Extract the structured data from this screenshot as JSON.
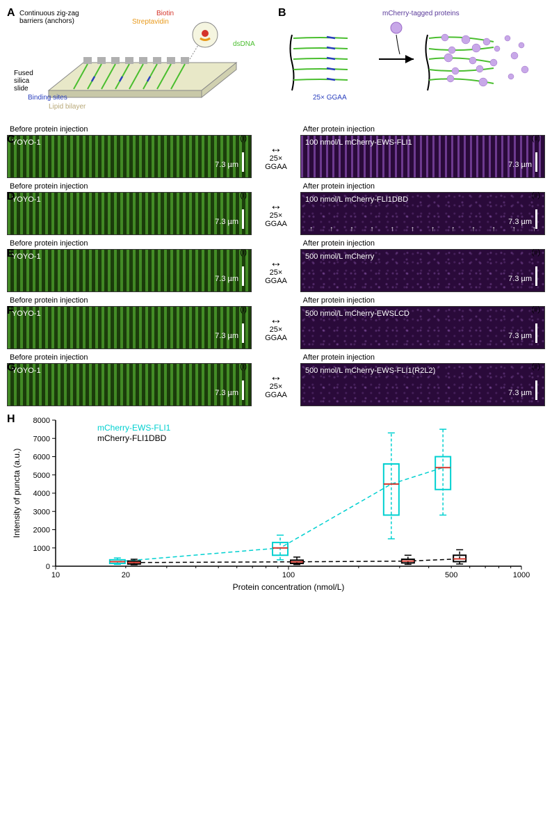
{
  "panelA": {
    "label": "A",
    "labels": {
      "zigzag": "Continuous zig-zag barriers (anchors)",
      "biotin": "Biotin",
      "streptavidin": "Streptavidin",
      "dsDNA": "dsDNA",
      "fused": "Fused silica slide",
      "binding": "Binding sites",
      "lipid": "Lipid bilayer"
    },
    "colors": {
      "biotin": "#d4342a",
      "streptavidin": "#e8991a",
      "dsDNA": "#4abe2f",
      "binding": "#2a3fbe",
      "lipid": "#b8a878",
      "slide": "#e8e8c8",
      "anchor": "#b0b0b0"
    }
  },
  "panelB": {
    "label": "B",
    "mcherry_label": "mCherry-tagged proteins",
    "ggaa_label": "25× GGAA",
    "colors": {
      "mcherry_text": "#5a3a9a",
      "dna": "#4abe2f",
      "binding": "#2a3fbe",
      "protein": "#c8a8e8"
    }
  },
  "rows": [
    {
      "label": "C",
      "before": "Before protein injection",
      "after": "After protein injection",
      "yoyo": "YOYO-1",
      "protein": "100 nmol/L mCherry-EWS-FLI1",
      "ggaa": "25× GGAA",
      "scale": "7.3 µm",
      "showStripesRight": true,
      "showArrows": false
    },
    {
      "label": "D",
      "before": "Before protein injection",
      "after": "After protein injection",
      "yoyo": "YOYO-1",
      "protein": "100 nmol/L mCherry-FLI1DBD",
      "ggaa": "25× GGAA",
      "scale": "7.3 µm",
      "showStripesRight": false,
      "showArrows": true
    },
    {
      "label": "E",
      "before": "Before protein injection",
      "after": "After protein injection",
      "yoyo": "YOYO-1",
      "protein": "500 nmol/L mCherry",
      "ggaa": "25× GGAA",
      "scale": "7.3 µm",
      "showStripesRight": false,
      "showArrows": false
    },
    {
      "label": "F",
      "before": "Before protein injection",
      "after": "After protein injection",
      "yoyo": "YOYO-1",
      "protein": "500 nmol/L mCherry-EWSLCD",
      "ggaa": "25× GGAA",
      "scale": "7.3 µm",
      "showStripesRight": false,
      "showArrows": false
    },
    {
      "label": "G",
      "before": "Before protein injection",
      "after": "After protein injection",
      "yoyo": "YOYO-1",
      "protein": "500 nmol/L mCherry-EWS-FLI1(R2L2)",
      "ggaa": "25× GGAA",
      "scale": "7.3 µm",
      "showStripesRight": false,
      "showArrows": false
    }
  ],
  "chart": {
    "label": "H",
    "type": "boxplot",
    "xlabel": "Protein concentration (nmol/L)",
    "ylabel": "Intensity of puncta (a.u.)",
    "legend": [
      "mCherry-EWS-FLI1",
      "mCherry-FLI1DBD"
    ],
    "legend_colors": [
      "#00d0d0",
      "#000000"
    ],
    "x_ticks": [
      10,
      100,
      1000
    ],
    "x_minor_labels": [
      20,
      100,
      500
    ],
    "y_ticks": [
      0,
      1000,
      2000,
      3000,
      4000,
      5000,
      6000,
      7000,
      8000
    ],
    "x_scale": "log",
    "series": {
      "ews_fli1": {
        "color": "#00d0d0",
        "boxes": [
          {
            "x": 20,
            "q1": 150,
            "median": 250,
            "q3": 350,
            "wlow": 100,
            "whigh": 450
          },
          {
            "x": 100,
            "q1": 600,
            "median": 1000,
            "q3": 1300,
            "wlow": 350,
            "whigh": 1700
          },
          {
            "x": 300,
            "q1": 2800,
            "median": 4500,
            "q3": 5600,
            "wlow": 1500,
            "whigh": 7300
          },
          {
            "x": 500,
            "q1": 4200,
            "median": 5400,
            "q3": 6000,
            "wlow": 2800,
            "whigh": 7500
          }
        ]
      },
      "fli1dbd": {
        "color": "#000000",
        "boxes": [
          {
            "x": 20,
            "q1": 120,
            "median": 200,
            "q3": 280,
            "wlow": 80,
            "whigh": 380
          },
          {
            "x": 100,
            "q1": 150,
            "median": 240,
            "q3": 330,
            "wlow": 90,
            "whigh": 500
          },
          {
            "x": 300,
            "q1": 180,
            "median": 280,
            "q3": 380,
            "wlow": 100,
            "whigh": 600
          },
          {
            "x": 500,
            "q1": 250,
            "median": 400,
            "q3": 600,
            "wlow": 120,
            "whigh": 900
          }
        ]
      }
    },
    "median_color": "#d4342a",
    "background": "#ffffff"
  }
}
